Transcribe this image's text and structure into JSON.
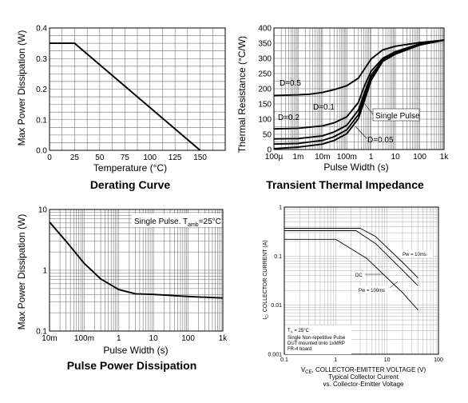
{
  "chart_data": [
    {
      "type": "line",
      "title": "Derating Curve",
      "xlabel": "Temperature (°C)",
      "ylabel": "Max Power Dissipation (W)",
      "xscale": "linear",
      "yscale": "linear",
      "xlim": [
        0,
        175
      ],
      "ylim": [
        0,
        0.4
      ],
      "grid": true,
      "xticks": [
        0,
        25,
        50,
        75,
        100,
        125,
        150
      ],
      "yticks": [
        0,
        0.1,
        0.2,
        0.3,
        0.4
      ],
      "xtick_labels": [
        "0",
        "25",
        "50",
        "75",
        "100",
        "125",
        "150"
      ],
      "ytick_labels": [
        "0.0",
        "0.1",
        "0.2",
        "0.3",
        "0.4"
      ],
      "series": [
        {
          "x": [
            0,
            25,
            150
          ],
          "y": [
            0.35,
            0.35,
            0
          ]
        }
      ]
    },
    {
      "type": "line",
      "title": "Transient Thermal Impedance",
      "xlabel": "Pulse Width (s)",
      "ylabel": "Thermal Resistance (°C/W)",
      "xscale": "log",
      "yscale": "linear",
      "xlim": [
        0.0001,
        1000
      ],
      "ylim": [
        0,
        400
      ],
      "grid": true,
      "xticks": [
        0.0001,
        0.001,
        0.01,
        0.1,
        1,
        10,
        100,
        1000
      ],
      "yticks": [
        0,
        50,
        100,
        150,
        200,
        250,
        300,
        350,
        400
      ],
      "xtick_labels": [
        "100µ",
        "1m",
        "10m",
        "100m",
        "1",
        "10",
        "100",
        "1k"
      ],
      "ytick_labels": [
        "0",
        "50",
        "100",
        "150",
        "200",
        "250",
        "300",
        "350",
        "400"
      ],
      "annotations": [
        "D=0.5",
        "D=0.2",
        "D=0.1",
        "D=0.05",
        "Single Pulse"
      ],
      "series": [
        {
          "name": "D=0.5",
          "x": [
            0.0001,
            0.001,
            0.003,
            0.01,
            0.03,
            0.1,
            0.3,
            0.5,
            1,
            3,
            10,
            100,
            1000
          ],
          "y": [
            178,
            180,
            182,
            188,
            197,
            210,
            235,
            262,
            298,
            328,
            340,
            352,
            360
          ]
        },
        {
          "name": "D=0.2",
          "x": [
            0.0001,
            0.001,
            0.01,
            0.03,
            0.1,
            0.3,
            0.5,
            1,
            3,
            10,
            100,
            1000
          ],
          "y": [
            68,
            70,
            78,
            88,
            108,
            155,
            205,
            258,
            300,
            322,
            348,
            360
          ]
        },
        {
          "name": "D=0.1",
          "x": [
            0.0001,
            0.001,
            0.01,
            0.03,
            0.1,
            0.3,
            0.5,
            1,
            3,
            10,
            100,
            1000
          ],
          "y": [
            35,
            36,
            45,
            58,
            80,
            130,
            182,
            245,
            295,
            318,
            346,
            360
          ]
        },
        {
          "name": "D=0.05",
          "x": [
            0.0001,
            0.001,
            0.01,
            0.03,
            0.1,
            0.3,
            0.5,
            1,
            3,
            10,
            100,
            1000
          ],
          "y": [
            18,
            20,
            30,
            42,
            65,
            115,
            168,
            235,
            292,
            316,
            345,
            360
          ]
        },
        {
          "name": "Single Pulse",
          "x": [
            0.0001,
            0.001,
            0.01,
            0.03,
            0.1,
            0.3,
            0.5,
            1,
            3,
            10,
            100,
            1000
          ],
          "y": [
            3,
            8,
            18,
            30,
            52,
            102,
            155,
            228,
            290,
            314,
            344,
            360
          ]
        }
      ]
    },
    {
      "type": "line",
      "title": "Pulse Power Dissipation",
      "xlabel": "Pulse Width (s)",
      "ylabel": "Max Power Dissipation (W)",
      "xscale": "log",
      "yscale": "log",
      "xlim": [
        0.01,
        1000
      ],
      "ylim": [
        0.1,
        10
      ],
      "grid": true,
      "xticks": [
        0.01,
        0.1,
        1,
        10,
        100,
        1000
      ],
      "yticks": [
        0.1,
        1,
        10
      ],
      "xtick_labels": [
        "10m",
        "100m",
        "1",
        "10",
        "100",
        "1k"
      ],
      "ytick_labels": [
        "0.1",
        "1",
        "10"
      ],
      "annotations": {
        "pulse_label": "Single Pulse. T",
        "pulse_sub": "amb",
        "pulse_value": "=25°C"
      },
      "series": [
        {
          "x": [
            0.01,
            0.03,
            0.1,
            0.3,
            1,
            3,
            10,
            100,
            1000
          ],
          "y": [
            6.2,
            3.0,
            1.3,
            0.72,
            0.48,
            0.41,
            0.4,
            0.37,
            0.35
          ]
        }
      ]
    },
    {
      "type": "line",
      "title": "Typical Collector Current",
      "subtitle": "vs. Collector-Emitter Voltage",
      "xlabel_main": "V",
      "xlabel_sub": "CE",
      "xlabel_rest": ", COLLECTOR-EMITTER VOLTAGE (V)",
      "ylabel_main": "I",
      "ylabel_sub": "C",
      "ylabel_rest": ", COLLECTOR CURRENT (A)",
      "xscale": "log",
      "yscale": "log",
      "xlim": [
        0.1,
        100
      ],
      "ylim": [
        0.001,
        1
      ],
      "grid": true,
      "xticks": [
        0.1,
        1,
        10,
        100
      ],
      "yticks": [
        0.001,
        0.01,
        0.1,
        1
      ],
      "xtick_labels": [
        "0.1",
        "1",
        "10",
        "100"
      ],
      "ytick_labels": [
        "0.001",
        "0.01",
        "0.1",
        "1"
      ],
      "annotations": {
        "ta_main": "T",
        "ta_sub": "A",
        "ta_rest": " = 25°C",
        "note_line1": "Single Non-repetitive Pulse",
        "note_line2": "DUT mounted onto 1xMRP",
        "note_line3": "FR-4 board",
        "pw10": "Pw = 10ms",
        "dc": "DC",
        "pw100": "Pw = 100ms"
      },
      "series": [
        {
          "name": "Pw = 10ms",
          "x": [
            0.1,
            3.0,
            6,
            20,
            40
          ],
          "y": [
            0.37,
            0.37,
            0.25,
            0.075,
            0.036
          ]
        },
        {
          "name": "Pw = 100ms",
          "x": [
            0.1,
            2.5,
            6,
            20,
            40
          ],
          "y": [
            0.33,
            0.33,
            0.18,
            0.052,
            0.025
          ]
        },
        {
          "name": "DC",
          "x": [
            0.1,
            1.0,
            4,
            20,
            40
          ],
          "y": [
            0.22,
            0.22,
            0.09,
            0.018,
            0.008
          ]
        }
      ]
    }
  ]
}
